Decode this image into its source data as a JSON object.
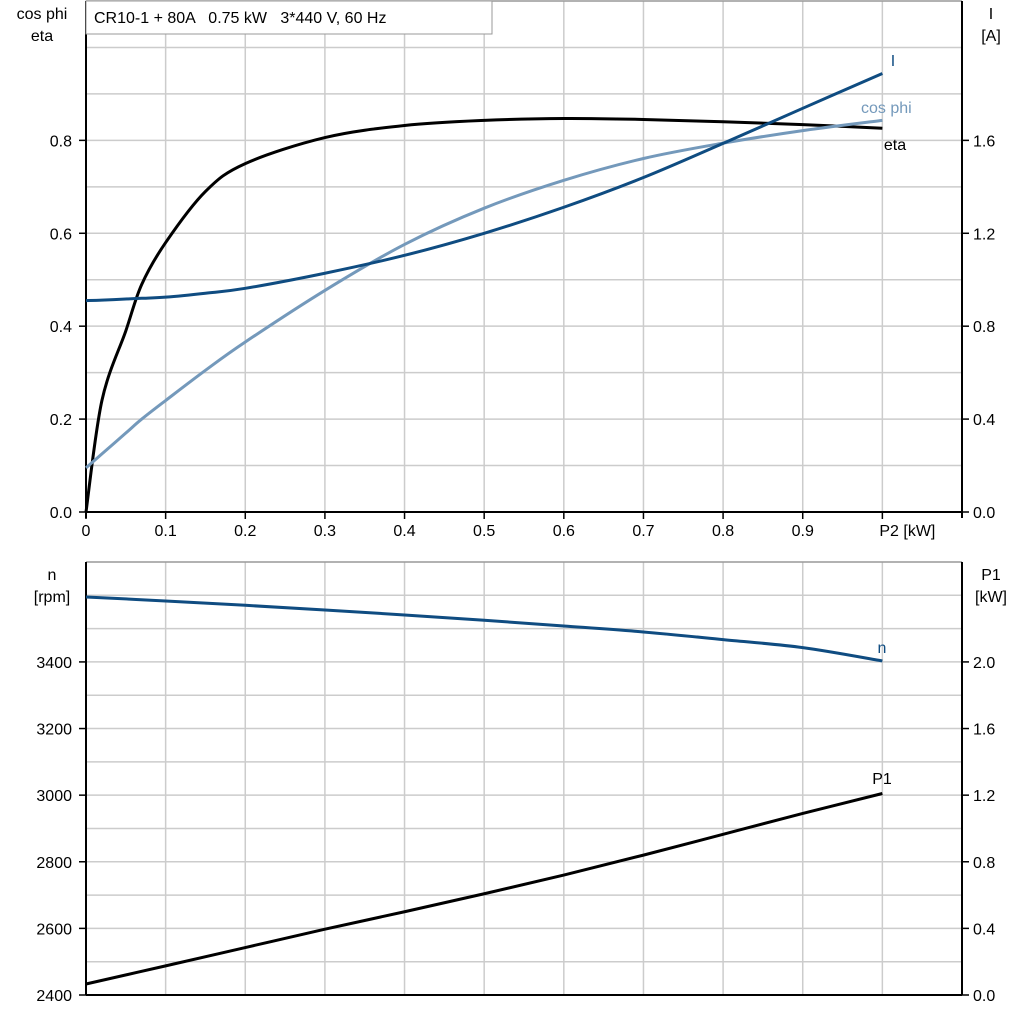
{
  "colors": {
    "I": "#0f4c81",
    "cos_phi": "#7499bb",
    "eta": "#000000",
    "n": "#0f4c81",
    "P1": "#000000",
    "grid": "#cccccc"
  },
  "chart_data": [
    {
      "type": "line",
      "title": "CR10-1 + 80A   0.75 kW   3*440 V, 60 Hz",
      "xlabel": "P2 [kW]",
      "ylabel_left": [
        "cos phi",
        "eta"
      ],
      "ylabel_right": [
        "I",
        "[A]"
      ],
      "xlim": [
        0,
        1.1
      ],
      "ylim_left": [
        0,
        1.1
      ],
      "ylim_right": [
        0,
        2.2
      ],
      "grid": true,
      "x_ticks": [
        "0",
        "0.1",
        "0.2",
        "0.3",
        "0.4",
        "0.5",
        "0.6",
        "0.7",
        "0.8",
        "0.9"
      ],
      "y_ticks_left": [
        "0.0",
        "0.2",
        "0.4",
        "0.6",
        "0.8"
      ],
      "y_ticks_right": [
        "0.0",
        "0.4",
        "0.8",
        "1.2",
        "1.6"
      ],
      "x": [
        0,
        0.02,
        0.05,
        0.07,
        0.1,
        0.15,
        0.2,
        0.3,
        0.4,
        0.5,
        0.6,
        0.7,
        0.8,
        0.9,
        1.0
      ],
      "series": [
        {
          "name": "eta",
          "axis": "left",
          "values": [
            0,
            0.24,
            0.39,
            0.49,
            0.58,
            0.69,
            0.75,
            0.806,
            0.832,
            0.843,
            0.847,
            0.845,
            0.84,
            0.834,
            0.826
          ]
        },
        {
          "name": "cos phi",
          "axis": "left",
          "values": [
            0.095,
            0.125,
            0.17,
            0.2,
            0.24,
            0.305,
            0.366,
            0.477,
            0.576,
            0.654,
            0.714,
            0.761,
            0.794,
            0.821,
            0.843
          ]
        },
        {
          "name": "I",
          "axis": "right",
          "values": [
            0.91,
            0.912,
            0.917,
            0.92,
            0.925,
            0.942,
            0.963,
            1.028,
            1.105,
            1.2,
            1.312,
            1.44,
            1.587,
            1.738,
            1.888
          ]
        }
      ]
    },
    {
      "type": "line",
      "ylabel_left": [
        "n",
        "[rpm]"
      ],
      "ylabel_right": [
        "P1",
        "[kW]"
      ],
      "xlim": [
        0,
        1.1
      ],
      "ylim_left": [
        2400,
        3700
      ],
      "ylim_right": [
        0,
        2.6
      ],
      "grid": true,
      "y_ticks_left": [
        "2400",
        "2600",
        "2800",
        "3000",
        "3200",
        "3400"
      ],
      "y_ticks_right": [
        "0.0",
        "0.4",
        "0.8",
        "1.2",
        "1.6",
        "2.0"
      ],
      "x": [
        0,
        0.1,
        0.2,
        0.3,
        0.4,
        0.5,
        0.6,
        0.7,
        0.8,
        0.9,
        1.0
      ],
      "series": [
        {
          "name": "n",
          "axis": "left",
          "values": [
            3595,
            3583,
            3570,
            3556,
            3541,
            3525,
            3508,
            3490,
            3467,
            3443,
            3403
          ]
        },
        {
          "name": "P1",
          "axis": "right",
          "values": [
            0.066,
            0.175,
            0.285,
            0.395,
            0.5,
            0.608,
            0.72,
            0.84,
            0.965,
            1.09,
            1.21
          ]
        }
      ]
    }
  ]
}
